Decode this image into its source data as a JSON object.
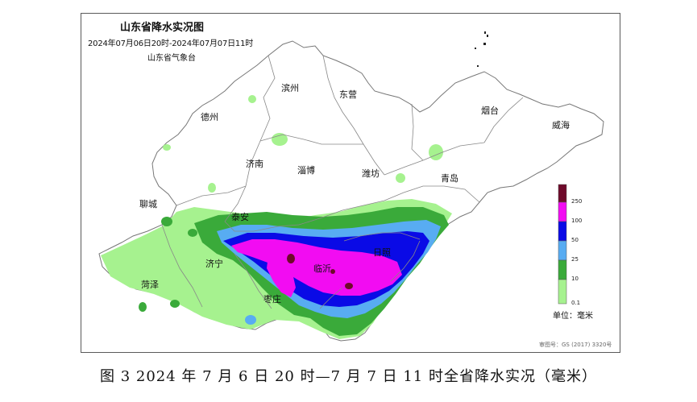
{
  "map": {
    "title": "山东省降水实况图",
    "time_range": "2024年07月06日20时-2024年07月07日11时",
    "agency": "山东省气象台",
    "review_number": "审图号：GS (2017) 3320号",
    "cities": [
      {
        "id": "binzhou",
        "name": "滨州"
      },
      {
        "id": "dongying",
        "name": "东营"
      },
      {
        "id": "dezhou",
        "name": "德州"
      },
      {
        "id": "yantai",
        "name": "烟台"
      },
      {
        "id": "weihai",
        "name": "威海"
      },
      {
        "id": "jinan",
        "name": "济南"
      },
      {
        "id": "zibo",
        "name": "淄博"
      },
      {
        "id": "weifang",
        "name": "潍坊"
      },
      {
        "id": "qingdao",
        "name": "青岛"
      },
      {
        "id": "liaocheng",
        "name": "聊城"
      },
      {
        "id": "taian",
        "name": "泰安"
      },
      {
        "id": "rizhao",
        "name": "日照"
      },
      {
        "id": "jining",
        "name": "济宁"
      },
      {
        "id": "linyi",
        "name": "临沂"
      },
      {
        "id": "heze",
        "name": "菏泽"
      },
      {
        "id": "zaozhuang",
        "name": "枣庄"
      }
    ]
  },
  "legend": {
    "unit_label": "单位：毫米",
    "levels": [
      {
        "label": "250",
        "color": "#6e0a2a"
      },
      {
        "label": "100",
        "color": "#f20cf2"
      },
      {
        "label": "50",
        "color": "#0a0ae6"
      },
      {
        "label": "25",
        "color": "#58acf2"
      },
      {
        "label": "10",
        "color": "#3aaa3a"
      },
      {
        "label": "0.1",
        "color": "#a6f28f"
      }
    ]
  },
  "caption": "图 3 2024 年 7 月 6 日 20 时—7 月 7 日 11 时全省降水实况（毫米）"
}
